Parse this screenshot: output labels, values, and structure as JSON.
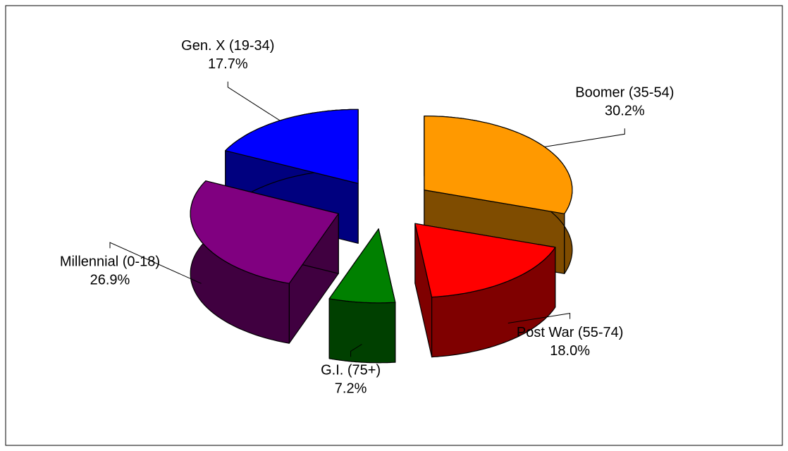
{
  "chart_data": {
    "type": "pie3d",
    "categories": [
      "Boomer (35-54)",
      "Post War (55-74)",
      "G.I. (75+)",
      "Millennial (0-18)",
      "Gen. X (19-34)"
    ],
    "values": [
      30.2,
      18.0,
      7.2,
      26.9,
      17.7
    ],
    "value_labels": [
      "30.2%",
      "18.0%",
      "7.2%",
      "26.9%",
      "17.7%"
    ],
    "colors": [
      "#ff9900",
      "#ff0000",
      "#008000",
      "#800080",
      "#0000ff"
    ]
  }
}
